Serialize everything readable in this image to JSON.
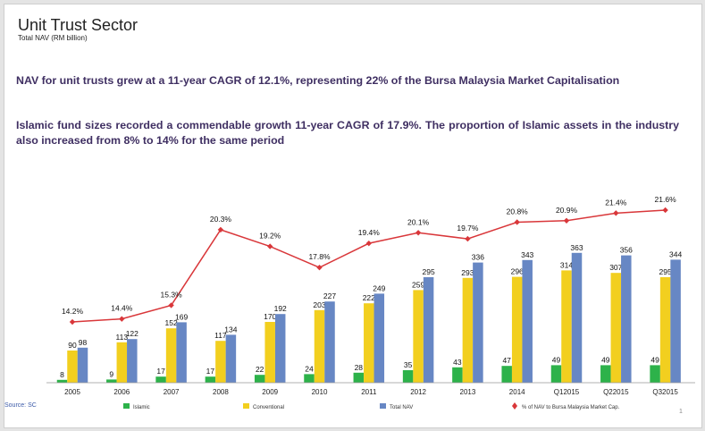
{
  "header": {
    "title": "Unit Trust Sector",
    "subtitle": "Total NAV (RM billion)"
  },
  "bullets": [
    "NAV for unit trusts grew at a 11-year CAGR of 12.1%, representing 22% of the Bursa Malaysia Market Capitalisation",
    "Islamic fund sizes recorded a commendable growth 11-year CAGR of 17.9%. The proportion of Islamic assets in the industry also increased from 8% to 14% for the same period"
  ],
  "footer": {
    "source": "Source: SC",
    "page_number": "1"
  },
  "colors": {
    "islamic": "#2db24a",
    "conventional": "#f2cf1f",
    "total": "#6787c4",
    "pct_line": "#d9373a"
  },
  "chart_data": {
    "type": "bar",
    "categories": [
      "2005",
      "2006",
      "2007",
      "2008",
      "2009",
      "2010",
      "2011",
      "2012",
      "2013",
      "2014",
      "Q12015",
      "Q22015",
      "Q32015"
    ],
    "series": [
      {
        "name": "Islamic",
        "values": [
          8,
          9,
          17,
          17,
          22,
          24,
          28,
          35,
          43,
          47,
          49,
          49,
          49
        ]
      },
      {
        "name": "Conventional",
        "values": [
          90,
          113,
          152,
          117,
          170,
          203,
          222,
          259,
          293,
          296,
          314,
          307,
          295
        ]
      },
      {
        "name": "Total NAV",
        "values": [
          98,
          122,
          169,
          134,
          192,
          227,
          249,
          295,
          336,
          343,
          363,
          356,
          344
        ]
      }
    ],
    "line_series": {
      "name": "% of NAV to Bursa Malaysia Market Cap.",
      "values": [
        14.2,
        14.4,
        15.3,
        20.3,
        19.2,
        17.8,
        19.4,
        20.1,
        19.7,
        20.8,
        20.9,
        21.4,
        21.6
      ],
      "labels": [
        "14.2%",
        "14.4%",
        "15.3%",
        "20.3%",
        "19.2%",
        "17.8%",
        "19.4%",
        "20.1%",
        "19.7%",
        "20.8%",
        "20.9%",
        "21.4%",
        "21.6%"
      ]
    },
    "legend": [
      "Islamic",
      "Conventional",
      "Total NAV",
      "% of NAV to Bursa Malaysia Market Cap."
    ],
    "legend_position": "bottom",
    "grid": false
  }
}
